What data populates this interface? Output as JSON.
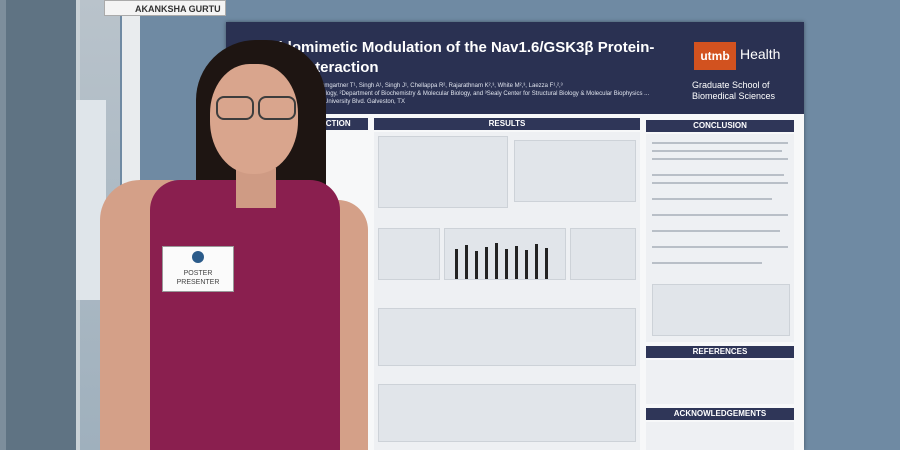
{
  "nameplate": {
    "text": "AKANKSHA GURTU"
  },
  "poster": {
    "title": "Peptidomimetic Modulation of the Nav1.6/GSK3β Protein-Protein Interaction",
    "authors": "...joo Z¹, Baumgartner T¹, Singh A¹, Singh J¹, Chellappa R², Rajarathnam K²,³, White M²,³, Laezza F¹,²,³",
    "affiliation": "...gy & Toxicology, ²Department of Biochemistry & Molecular Biology, and ³Sealy Center for Structural Biology & Molecular Biophysics ... Branch, 301 University Blvd. Galveston, TX",
    "logo": "utmb",
    "logo_word": "Health",
    "school": "Graduate School of Biomedical Sciences",
    "sections": {
      "intro": "...UCTION",
      "results": "RESULTS",
      "conclusion": "CONCLUSION",
      "references": "REFERENCES",
      "acknowledgements": "ACKNOWLEDGEMENTS"
    }
  },
  "badge": {
    "line1": "POSTER",
    "line2": "PRESENTER"
  }
}
